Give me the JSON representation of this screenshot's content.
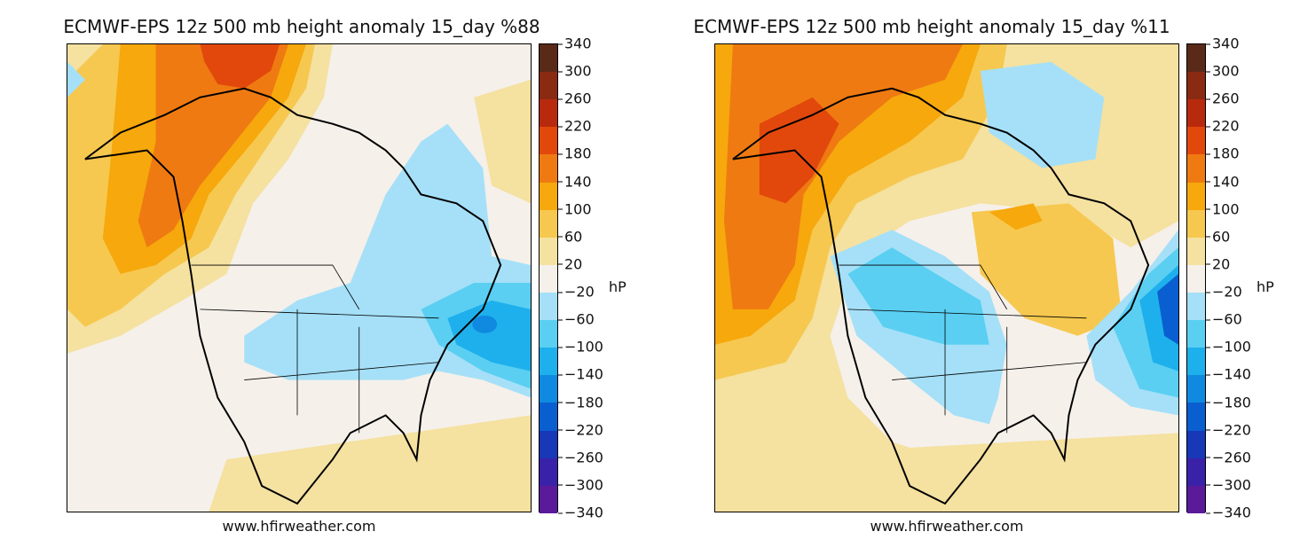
{
  "panels": [
    {
      "title": "ECMWF-EPS 12z 500 mb height anomaly 15_day %88",
      "credit": "www.hfirweather.com"
    },
    {
      "title": "ECMWF-EPS 12z 500 mb height anomaly 15_day %11",
      "credit": "www.hfirweather.com"
    }
  ],
  "colorbar": {
    "unit": "hP",
    "ticks": [
      "340",
      "300",
      "260",
      "220",
      "180",
      "140",
      "100",
      "60",
      "20",
      "−20",
      "−60",
      "−100",
      "−140",
      "−180",
      "−220",
      "−260",
      "−300",
      "−340"
    ],
    "colors": [
      "#5a2a18",
      "#8a2a12",
      "#b82a0e",
      "#e2480c",
      "#ef7a12",
      "#f6a80c",
      "#f6c850",
      "#f5e1a0",
      "#f5f0ea",
      "#a5e0f8",
      "#5acff2",
      "#1eb0ec",
      "#0f8ae0",
      "#0a5fd0",
      "#1838b8",
      "#3a22a8",
      "#5a1a9a"
    ],
    "text_color": "#111111"
  }
}
